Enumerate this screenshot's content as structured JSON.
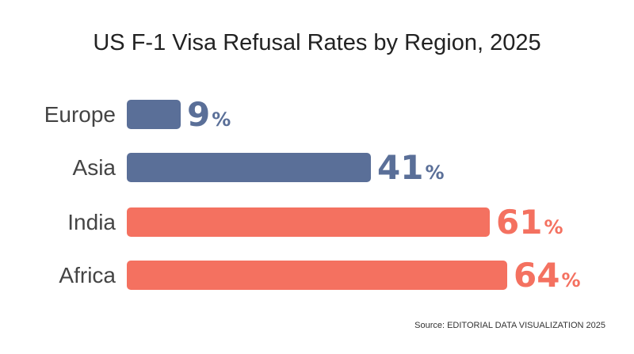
{
  "chart_data": {
    "type": "bar",
    "orientation": "horizontal",
    "title": "US F-1 Visa Refusal Rates by Region, 2025",
    "categories": [
      "Europe",
      "Asia",
      "India",
      "Africa"
    ],
    "values": [
      9,
      41,
      61,
      64
    ],
    "value_suffix": "%",
    "colors": [
      "#5a6f98",
      "#5a6f98",
      "#f47160",
      "#f47160"
    ],
    "xlim": [
      0,
      64
    ],
    "grid": false,
    "legend": "none",
    "source": "Source: EDITORIAL DATA VISUALIZATION 2025"
  }
}
